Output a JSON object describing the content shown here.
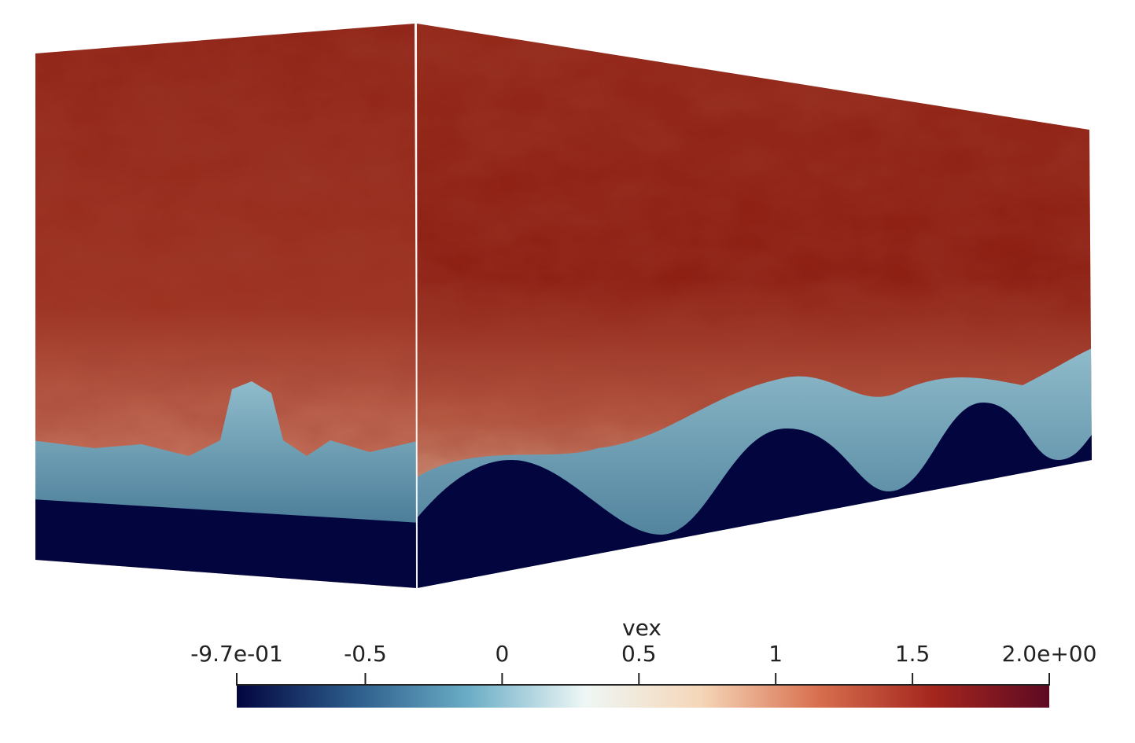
{
  "chart_data": {
    "type": "colorbar",
    "title": "vex",
    "clim": [
      -0.97,
      2.0
    ],
    "ticks": [
      {
        "value": -0.97,
        "label": "-9.7e-01"
      },
      -0.5,
      0,
      0.5,
      1,
      1.5,
      {
        "value": 2.0,
        "label": "2.0e+00"
      }
    ],
    "colormap": [
      "#03053f",
      "#2b5b8a",
      "#6badc6",
      "#eef7f5",
      "#f5d6b8",
      "#d8704f",
      "#a4261e",
      "#5e0a22"
    ]
  }
}
